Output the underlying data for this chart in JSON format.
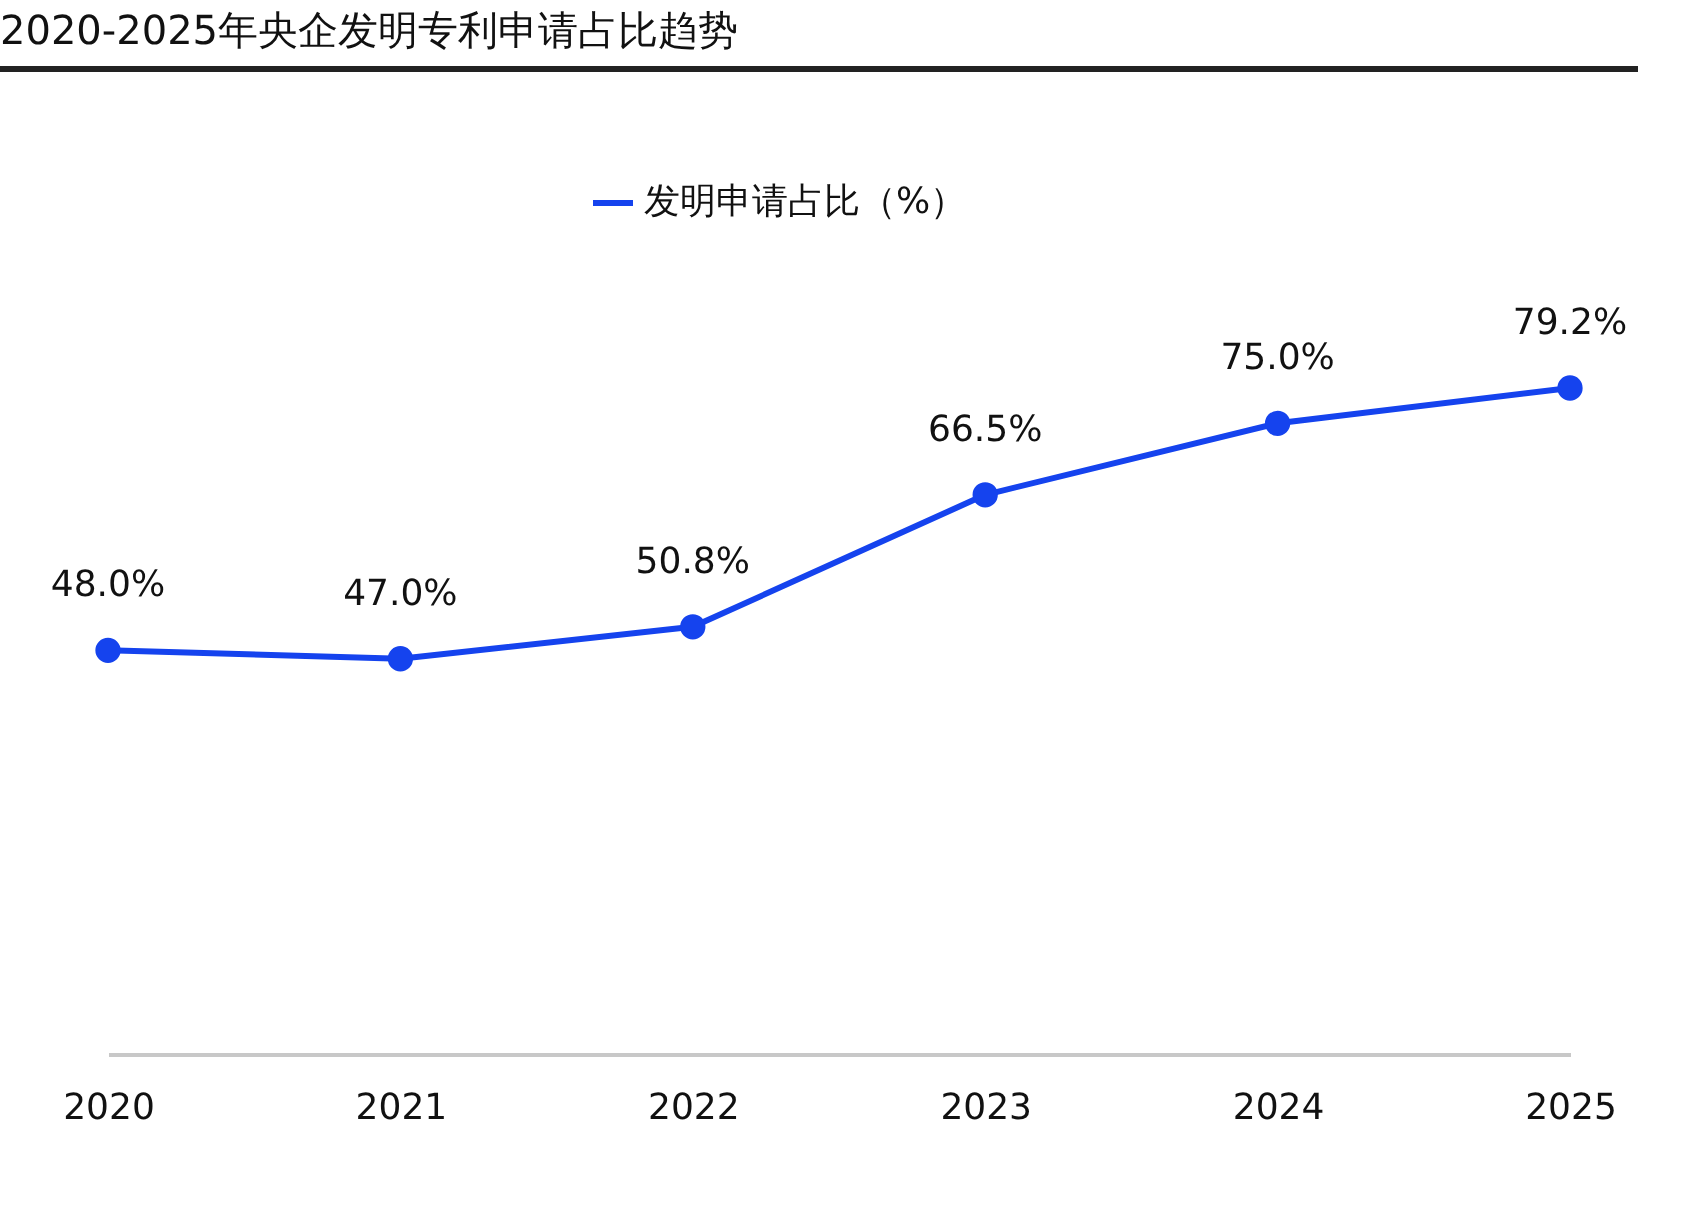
{
  "chart_data": {
    "type": "line",
    "title": "2020-2025年央企发明专利申请占比趋势",
    "categories": [
      "2020",
      "2021",
      "2022",
      "2023",
      "2024",
      "2025"
    ],
    "series": [
      {
        "name": "发明申请占比（%）",
        "color": "#1543ee",
        "values": [
          48.0,
          47.0,
          50.8,
          66.5,
          75.0,
          79.2
        ],
        "value_labels": [
          "48.0%",
          "47.0%",
          "50.8%",
          "66.5%",
          "75.0%",
          "79.2%"
        ]
      }
    ],
    "marker": "circle",
    "legend": "top",
    "tick_labels": "x"
  }
}
